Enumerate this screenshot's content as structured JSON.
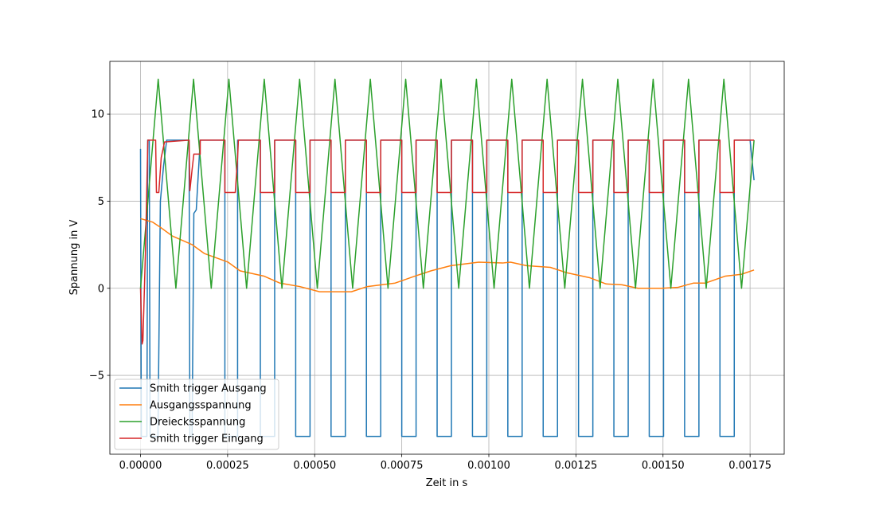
{
  "chart_data": {
    "type": "line",
    "xlabel": "Zeit in s",
    "ylabel": "Spannung in V",
    "grid": true,
    "legend": "lower left",
    "xlim": [
      -8.8e-05,
      0.001848
    ],
    "ylim": [
      -9.525,
      13.025
    ],
    "xticks": [
      {
        "value": 0,
        "label": "0.00000"
      },
      {
        "value": 0.00025,
        "label": "0.00025"
      },
      {
        "value": 0.0005,
        "label": "0.00050"
      },
      {
        "value": 0.00075,
        "label": "0.00075"
      },
      {
        "value": 0.001,
        "label": "0.00100"
      },
      {
        "value": 0.00125,
        "label": "0.00125"
      },
      {
        "value": 0.0015,
        "label": "0.00150"
      },
      {
        "value": 0.00175,
        "label": "0.00175"
      }
    ],
    "yticks": [
      {
        "value": -5,
        "label": "−5"
      },
      0,
      5,
      10
    ],
    "series": [
      {
        "name": "Smith trigger Ausgang",
        "color": "#1f77b4",
        "x": [
          0,
          2.3e-06,
          1.83e-05,
          2.06e-05,
          2.51e-05,
          2.74e-05,
          5e-05,
          5.7e-05,
          6.6e-05,
          7.5e-05,
          0.0001394,
          0.0001417,
          0.000148,
          0.0001531,
          0.00016,
          0.0001714,
          0.0002422,
          0.0002422,
          0.0002787,
          0.0002787,
          0.000344,
          0.000344,
          0.0003851,
          0.0003851,
          0.0004455,
          0.0004455,
          0.0004866,
          0.0004866,
          0.000547,
          0.000547,
          0.0005881,
          0.0005881,
          0.0006485,
          0.0006485,
          0.0006896,
          0.0006896,
          0.00075,
          0.00075,
          0.0007911,
          0.0007911,
          0.0008515,
          0.0008515,
          0.0008926,
          0.0008926,
          0.000953,
          0.000953,
          0.0009941,
          0.0009941,
          0.0010545,
          0.0010545,
          0.0010956,
          0.0010956,
          0.001156,
          0.001156,
          0.0011971,
          0.0011971,
          0.0012575,
          0.0012575,
          0.0012986,
          0.0012986,
          0.001359,
          0.001359,
          0.0014001,
          0.0014001,
          0.0014605,
          0.0014605,
          0.0015016,
          0.0015016,
          0.001562,
          0.001562,
          0.0016031,
          0.0016031,
          0.0016635,
          0.0016635,
          0.0017046,
          0.0017046,
          0.00175,
          0.0017614
        ],
        "values": [
          8,
          -8.5,
          -8.5,
          8.5,
          8.5,
          -8.5,
          -8.5,
          5,
          7,
          8.5,
          8.5,
          -8.5,
          -8.5,
          4.3,
          4.5,
          8.5,
          8.5,
          -8.5,
          -8.5,
          8.5,
          8.5,
          -8.5,
          -8.5,
          8.5,
          8.5,
          -8.5,
          -8.5,
          8.5,
          8.5,
          -8.5,
          -8.5,
          8.5,
          8.5,
          -8.5,
          -8.5,
          8.5,
          8.5,
          -8.5,
          -8.5,
          8.5,
          8.5,
          -8.5,
          -8.5,
          8.5,
          8.5,
          -8.5,
          -8.5,
          8.5,
          8.5,
          -8.5,
          -8.5,
          8.5,
          8.5,
          -8.5,
          -8.5,
          8.5,
          8.5,
          -8.5,
          -8.5,
          8.5,
          8.5,
          -8.5,
          -8.5,
          8.5,
          8.5,
          -8.5,
          -8.5,
          8.5,
          8.5,
          -8.5,
          -8.5,
          8.5,
          8.5,
          -8.5,
          -8.5,
          8.5,
          8.5,
          6.2
        ]
      },
      {
        "name": "Ausgangsspannung",
        "color": "#ff7f0e",
        "x": [
          0,
          3.43e-05,
          5.71e-05,
          9.14e-05,
          0.0001485,
          0.0001828,
          0.0002513,
          0.0002856,
          0.0003541,
          0.0003998,
          0.0004569,
          0.000514,
          0.0006054,
          0.0006511,
          0.0007311,
          0.0007882,
          0.0008339,
          0.000891,
          0.000971,
          0.0010395,
          0.0010623,
          0.001108,
          0.0011766,
          0.0012223,
          0.0012908,
          0.0013365,
          0.0013822,
          0.0014279,
          0.0014964,
          0.0015421,
          0.0015878,
          0.0016221,
          0.0016792,
          0.0017249,
          0.0017614
        ],
        "values": [
          4,
          3.8,
          3.5,
          3,
          2.5,
          2,
          1.5,
          1,
          0.7,
          0.3,
          0.1,
          -0.2,
          -0.2,
          0.1,
          0.3,
          0.7,
          1,
          1.3,
          1.5,
          1.45,
          1.5,
          1.3,
          1.2,
          0.9,
          0.6,
          0.25,
          0.2,
          0,
          0,
          0.05,
          0.3,
          0.3,
          0.7,
          0.8,
          1.05
        ]
      },
      {
        "name": "Dreiecksspannung",
        "color": "#2ca02c",
        "x": [
          0,
          5.075e-05,
          0.0001015,
          0.00015225,
          0.000203,
          0.00025375,
          0.0003045,
          0.00035525,
          0.000406,
          0.00045675,
          0.0005075,
          0.00055825,
          0.000609,
          0.00065975,
          0.0007105,
          0.00076125,
          0.000812,
          0.00086275,
          0.0009135,
          0.00096425,
          0.001015,
          0.00106575,
          0.0011165,
          0.00116725,
          0.001218,
          0.00126875,
          0.0013195,
          0.00137025,
          0.001421,
          0.00147175,
          0.0015225,
          0.00157325,
          0.001624,
          0.00167475,
          0.0017255,
          0.0017614
        ],
        "values": [
          0,
          12,
          0,
          12,
          0,
          12,
          0,
          12,
          0,
          12,
          0,
          12,
          0,
          12,
          0,
          12,
          0,
          12,
          0,
          12,
          0,
          12,
          0,
          12,
          0,
          12,
          0,
          12,
          0,
          12,
          0,
          12,
          0,
          12,
          0,
          8.5
        ]
      },
      {
        "name": "Smith trigger Eingang",
        "color": "#d62728",
        "x": [
          0,
          4.6e-06,
          6.9e-06,
          1.4e-05,
          2.1e-05,
          4.34e-05,
          4.57e-05,
          5.25e-05,
          5.94e-05,
          6.9e-05,
          0.0001394,
          0.0001417,
          0.000148,
          0.0001531,
          0.0001714,
          0.0001714,
          0.0002422,
          0.0002422,
          0.000272,
          0.0002787,
          0.000281,
          0.000344,
          0.000344,
          0.0003851,
          0.0003851,
          0.0004455,
          0.0004455,
          0.0004866,
          0.0004866,
          0.000547,
          0.000547,
          0.0005881,
          0.0005881,
          0.0006485,
          0.0006485,
          0.0006896,
          0.0006896,
          0.00075,
          0.00075,
          0.0007911,
          0.0007911,
          0.0008515,
          0.0008515,
          0.0008926,
          0.0008926,
          0.000953,
          0.000953,
          0.0009941,
          0.0009941,
          0.0010545,
          0.0010545,
          0.0010956,
          0.0010956,
          0.001156,
          0.001156,
          0.0011971,
          0.0011971,
          0.0012575,
          0.0012575,
          0.0012986,
          0.0012986,
          0.001359,
          0.001359,
          0.0014001,
          0.0014001,
          0.0014605,
          0.0014605,
          0.0015016,
          0.0015016,
          0.001562,
          0.001562,
          0.0016031,
          0.0016031,
          0.0016635,
          0.0016635,
          0.0017046,
          0.0017046,
          0.0017614
        ],
        "values": [
          0,
          -3.2,
          -3,
          2,
          8.5,
          8.5,
          5.5,
          5.5,
          7.5,
          8.4,
          8.5,
          5.6,
          6.8,
          7.7,
          7.7,
          8.5,
          8.5,
          5.5,
          5.5,
          7.5,
          8.5,
          8.5,
          5.5,
          5.5,
          8.5,
          8.5,
          5.5,
          5.5,
          8.5,
          8.5,
          5.5,
          5.5,
          8.5,
          8.5,
          5.5,
          5.5,
          8.5,
          8.5,
          5.5,
          5.5,
          8.5,
          8.5,
          5.5,
          5.5,
          8.5,
          8.5,
          5.5,
          5.5,
          8.5,
          8.5,
          5.5,
          5.5,
          8.5,
          8.5,
          5.5,
          5.5,
          8.5,
          8.5,
          5.5,
          5.5,
          8.5,
          8.5,
          5.5,
          5.5,
          8.5,
          8.5,
          5.5,
          5.5,
          8.5,
          8.5,
          5.5,
          5.5,
          8.5,
          8.5,
          5.5,
          5.5,
          8.5,
          8.5
        ]
      }
    ]
  }
}
